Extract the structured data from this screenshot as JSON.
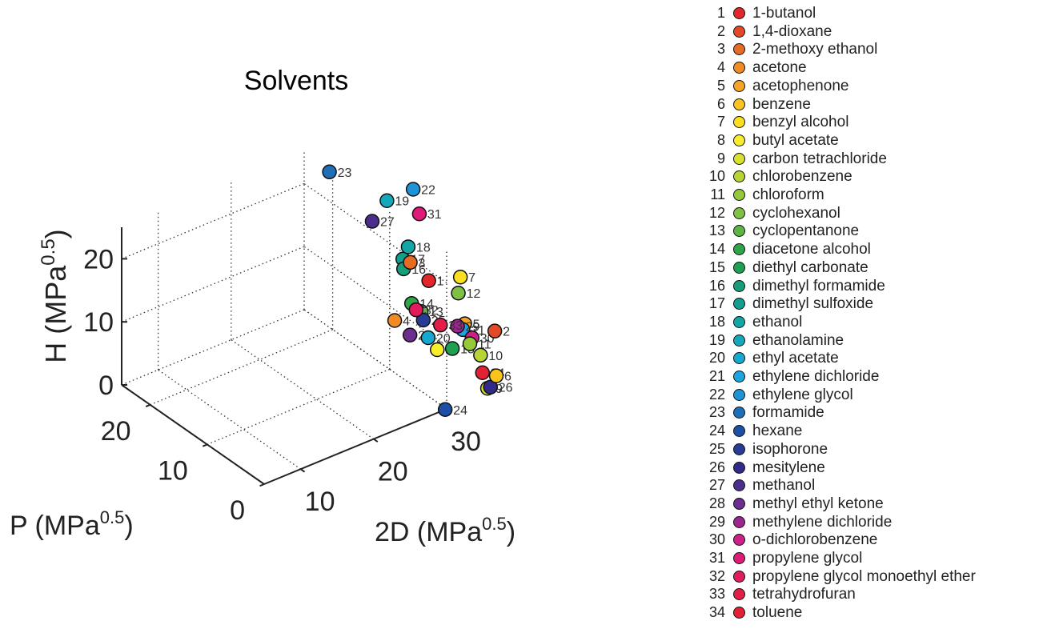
{
  "chart_data": {
    "type": "scatter",
    "title": "Solvents",
    "axis_labels": {
      "x": {
        "base": "2D (MPa",
        "exp": "0.5",
        "tail": ")"
      },
      "y": {
        "base": "P (MPa",
        "exp": "0.5",
        "tail": ")"
      },
      "z": {
        "base": "H (MPa",
        "exp": "0.5",
        "tail": ")"
      }
    },
    "ticks": {
      "x": [
        "10",
        "20",
        "30"
      ],
      "y": [
        "0",
        "10",
        "20"
      ],
      "z": [
        "0",
        "10",
        "20"
      ]
    },
    "xlim": [
      5,
      30
    ],
    "ylim": [
      0,
      25
    ],
    "zlim": [
      0,
      25
    ],
    "grid": true,
    "legend_position": "right",
    "points": [
      {
        "id": 1,
        "name": "1-butanol",
        "color": "#e3262b",
        "x": 32.0,
        "y": 5.7,
        "z": 15.8
      },
      {
        "id": 2,
        "name": "1,4-dioxane",
        "color": "#e24a27",
        "x": 38.0,
        "y": 1.8,
        "z": 7.4
      },
      {
        "id": 3,
        "name": "2-methoxy ethanol",
        "color": "#e66b23",
        "x": 32.2,
        "y": 9.2,
        "z": 16.4
      },
      {
        "id": 4,
        "name": "acetone",
        "color": "#f08b25",
        "x": 31.0,
        "y": 10.4,
        "z": 7.0
      },
      {
        "id": 5,
        "name": "acetophenone",
        "color": "#f5a523",
        "x": 39.2,
        "y": 8.6,
        "z": 3.7
      },
      {
        "id": 6,
        "name": "benzene",
        "color": "#f9c41e",
        "x": 36.8,
        "y": 0.0,
        "z": 2.0
      },
      {
        "id": 7,
        "name": "benzyl alcohol",
        "color": "#fbe020",
        "x": 36.8,
        "y": 6.3,
        "z": 13.7
      },
      {
        "id": 8,
        "name": "butyl acetate",
        "color": "#f9ee2a",
        "x": 31.6,
        "y": 3.7,
        "z": 6.3
      },
      {
        "id": 9,
        "name": "carbon tetrachloride",
        "color": "#d9e02e",
        "x": 35.6,
        "y": 0.0,
        "z": 0.6
      },
      {
        "id": 10,
        "name": "chlorobenzene",
        "color": "#b6d535",
        "x": 38.0,
        "y": 4.3,
        "z": 2.0
      },
      {
        "id": 11,
        "name": "chloroform",
        "color": "#95c93a",
        "x": 35.6,
        "y": 3.1,
        "z": 5.7
      },
      {
        "id": 12,
        "name": "cyclohexanol",
        "color": "#7fc144",
        "x": 34.8,
        "y": 4.1,
        "z": 13.5
      },
      {
        "id": 13,
        "name": "cyclopentanone",
        "color": "#5db546",
        "x": 35.8,
        "y": 11.9,
        "z": 5.2
      },
      {
        "id": 14,
        "name": "diacetone alcohol",
        "color": "#2fa54a",
        "x": 31.6,
        "y": 8.2,
        "z": 10.8
      },
      {
        "id": 15,
        "name": "diethyl carbonate",
        "color": "#1f9f52",
        "x": 33.2,
        "y": 3.1,
        "z": 6.1
      },
      {
        "id": 16,
        "name": "dimethyl formamide",
        "color": "#179d7a",
        "x": 34.8,
        "y": 13.7,
        "z": 11.3
      },
      {
        "id": 17,
        "name": "dimethyl sulfoxide",
        "color": "#139e8e",
        "x": 36.8,
        "y": 16.4,
        "z": 10.2
      },
      {
        "id": 18,
        "name": "ethanol",
        "color": "#14a6a6",
        "x": 31.6,
        "y": 8.8,
        "z": 19.4
      },
      {
        "id": 19,
        "name": "ethanolamine",
        "color": "#14a8ba",
        "x": 34.0,
        "y": 15.6,
        "z": 21.3
      },
      {
        "id": 20,
        "name": "ethyl acetate",
        "color": "#16a9d0",
        "x": 31.6,
        "y": 5.3,
        "z": 7.2
      },
      {
        "id": 21,
        "name": "ethylene dichloride",
        "color": "#1aa4e0",
        "x": 38.0,
        "y": 7.4,
        "z": 4.1
      },
      {
        "id": 22,
        "name": "ethylene glycol",
        "color": "#1d94d8",
        "x": 34.0,
        "y": 11.0,
        "z": 26.0
      },
      {
        "id": 23,
        "name": "formamide",
        "color": "#1e6fb8",
        "x": 34.4,
        "y": 26.2,
        "z": 19.0
      },
      {
        "id": 24,
        "name": "hexane",
        "color": "#1d4fa4",
        "x": 29.8,
        "y": 0.0,
        "z": 0.0
      },
      {
        "id": 25,
        "name": "isophorone",
        "color": "#283c96",
        "x": 33.2,
        "y": 8.2,
        "z": 7.4
      },
      {
        "id": 26,
        "name": "mesitylene",
        "color": "#322a88",
        "x": 36.0,
        "y": 0.0,
        "z": 0.6
      },
      {
        "id": 27,
        "name": "methanol",
        "color": "#4b2d8e",
        "x": 29.4,
        "y": 12.3,
        "z": 22.3
      },
      {
        "id": 28,
        "name": "methyl ethyl ketone",
        "color": "#6c2c90",
        "x": 32.0,
        "y": 9.0,
        "z": 5.1
      },
      {
        "id": 29,
        "name": "methylene dichloride",
        "color": "#9b2690",
        "x": 36.4,
        "y": 6.3,
        "z": 6.1
      },
      {
        "id": 30,
        "name": "o-dichlorobenzene",
        "color": "#cc1f8a",
        "x": 38.4,
        "y": 6.3,
        "z": 3.3
      },
      {
        "id": 31,
        "name": "propylene glycol",
        "color": "#e01a78",
        "x": 33.6,
        "y": 9.4,
        "z": 23.3
      },
      {
        "id": 32,
        "name": "propylene glycol monoethyl ether",
        "color": "#e21c5c",
        "x": 31.2,
        "y": 6.9,
        "z": 10.8
      },
      {
        "id": 33,
        "name": "tetrahydrofuran",
        "color": "#e21e48",
        "x": 33.6,
        "y": 5.7,
        "z": 8.0
      },
      {
        "id": 34,
        "name": "toluene",
        "color": "#e22234",
        "x": 36.0,
        "y": 1.4,
        "z": 2.0
      }
    ]
  }
}
